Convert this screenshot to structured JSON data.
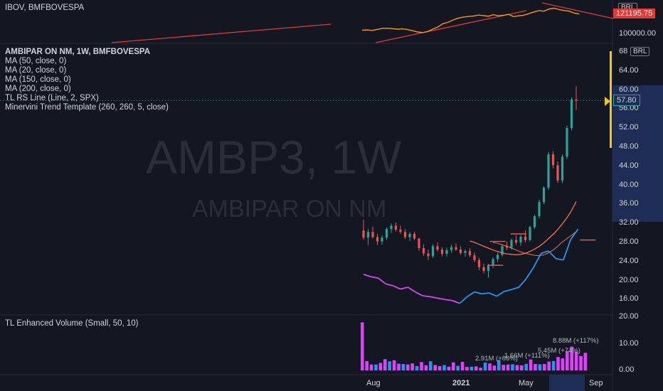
{
  "compare_pane": {
    "symbol_label": "IBOV, BMFBOVESPA",
    "currency_badge": "BRL",
    "last_value_label": "121195.75",
    "tick_label": "100000.00"
  },
  "main_pane": {
    "symbol_title": "AMBIPAR ON NM, 1W, BMFBOVESPA",
    "indicators": [
      "MA (50, close, 0)",
      "MA (20, close, 0)",
      "MA (150, close, 0)",
      "MA (200, close, 0)",
      "TL RS Line (Line, 2, SPX)",
      "Minervini Trend Template (260, 260, 5, close)"
    ],
    "watermark_ticker": "AMBP3, 1W",
    "watermark_name": "AMBIPAR ON NM",
    "currency_badge": "BRL",
    "price_label": "57.80",
    "top_tick": "68",
    "price_ticks": [
      "64.00",
      "60.00",
      "56.00",
      "52.00",
      "48.00",
      "44.00",
      "40.00",
      "36.00",
      "32.00",
      "28.00",
      "24.00",
      "20.00",
      "16.00"
    ]
  },
  "volume_pane": {
    "indicator_label": "TL Enhanced Volume (Small, 50, 10)",
    "ticks": [
      "20.00",
      "10.00",
      "0.00"
    ],
    "annotations": [
      "2.91M (+86%)",
      "1.66M (+111%)",
      "5.45M (+74%)",
      "8.88M (+117%)"
    ]
  },
  "x_axis": {
    "labels": [
      "Aug",
      "2021",
      "May",
      "Sep"
    ]
  },
  "colors": {
    "background": "#131722",
    "candle_up": "#26a69a",
    "candle_down": "#ef5350",
    "ibov_line": "#ff9800",
    "trend_line": "#e53935",
    "ma_line": "#ff7043",
    "rs_line_up": "#2196f3",
    "rs_line_down": "#e040fb",
    "volume_up": "#26a69a",
    "volume_high": "#e040fb",
    "volume_mid": "#2196f3",
    "highlight_yellow": "#f5c518",
    "axis_highlight": "#1e2d55"
  },
  "chart_data": [
    {
      "type": "line",
      "series": [
        {
          "name": "IBOV, BMFBOVESPA",
          "values": [
            100500,
            100800,
            100200,
            101500,
            102800,
            103000,
            102500,
            101800,
            102200,
            101300,
            99800,
            98200,
            97500,
            98800,
            101800,
            104500,
            108800,
            110500,
            113500,
            115800,
            117200,
            118000,
            118500,
            119800,
            119200,
            118400,
            120300,
            118900,
            119500,
            120800,
            117800,
            118900,
            119600,
            121600,
            123800,
            125500,
            124800,
            127500,
            128600,
            126800,
            125600,
            124800,
            122300,
            121196
          ]
        }
      ]
    },
    {
      "type": "candlestick",
      "ylim": [
        16,
        68
      ],
      "y_ticks": [
        64,
        60,
        56,
        52,
        48,
        44,
        40,
        36,
        32,
        28,
        24,
        20,
        16
      ],
      "last_price": 57.8,
      "candles": [
        [
          30.5,
          32.8,
          28.5,
          29.0
        ],
        [
          29.0,
          30.8,
          27.5,
          30.2
        ],
        [
          30.2,
          31.3,
          28.8,
          29.1
        ],
        [
          29.1,
          29.8,
          27.5,
          28.2
        ],
        [
          28.2,
          29.5,
          27.5,
          29.0
        ],
        [
          29.0,
          31.2,
          28.5,
          30.8
        ],
        [
          30.8,
          32.0,
          30.0,
          31.5
        ],
        [
          31.5,
          32.2,
          30.3,
          30.7
        ],
        [
          30.7,
          31.5,
          29.8,
          30.2
        ],
        [
          30.2,
          30.8,
          28.7,
          29.1
        ],
        [
          29.1,
          30.2,
          28.3,
          29.8
        ],
        [
          29.8,
          30.3,
          28.5,
          28.8
        ],
        [
          28.8,
          29.0,
          26.3,
          26.8
        ],
        [
          26.8,
          27.6,
          25.2,
          25.7
        ],
        [
          25.7,
          26.5,
          24.3,
          25.1
        ],
        [
          25.1,
          27.6,
          24.8,
          27.2
        ],
        [
          27.2,
          28.0,
          26.1,
          26.5
        ],
        [
          26.5,
          27.0,
          25.1,
          25.6
        ],
        [
          25.6,
          26.9,
          25.0,
          26.4
        ],
        [
          26.4,
          27.5,
          25.8,
          27.0
        ],
        [
          27.0,
          27.8,
          26.2,
          26.5
        ],
        [
          26.5,
          27.2,
          25.4,
          25.8
        ],
        [
          25.8,
          26.6,
          25.0,
          26.2
        ],
        [
          26.2,
          26.8,
          24.9,
          25.3
        ],
        [
          25.3,
          25.9,
          23.8,
          24.3
        ],
        [
          24.3,
          24.8,
          22.2,
          22.8
        ],
        [
          22.8,
          23.6,
          21.5,
          22.0
        ],
        [
          22.0,
          23.5,
          20.6,
          23.2
        ],
        [
          23.2,
          24.9,
          22.6,
          24.5
        ],
        [
          24.5,
          25.8,
          23.9,
          25.4
        ],
        [
          25.4,
          27.5,
          25.0,
          27.2
        ],
        [
          27.2,
          28.2,
          26.4,
          26.9
        ],
        [
          26.9,
          28.8,
          26.5,
          28.5
        ],
        [
          28.5,
          29.5,
          27.5,
          28.0
        ],
        [
          28.0,
          29.6,
          27.3,
          29.2
        ],
        [
          29.2,
          30.5,
          28.0,
          28.5
        ],
        [
          28.5,
          31.5,
          28.2,
          31.2
        ],
        [
          31.2,
          33.8,
          30.8,
          33.5
        ],
        [
          33.5,
          37.0,
          33.0,
          36.5
        ],
        [
          36.5,
          39.8,
          36.0,
          39.5
        ],
        [
          39.5,
          47.0,
          39.0,
          46.5
        ],
        [
          46.5,
          47.2,
          43.5,
          44.2
        ],
        [
          44.2,
          45.0,
          40.5,
          41.0
        ],
        [
          41.0,
          46.5,
          40.5,
          46.0
        ],
        [
          46.0,
          52.5,
          45.5,
          52.0
        ],
        [
          52.0,
          58.5,
          51.5,
          58.0
        ],
        [
          58.0,
          60.8,
          55.8,
          57.8
        ]
      ],
      "series": [
        {
          "name": "MA (50, close, 0)",
          "values": [
            28.3,
            28.0,
            27.6,
            27.2,
            26.8,
            26.4,
            26.1,
            25.8,
            25.6,
            25.5,
            25.4,
            25.5,
            25.7,
            26.1,
            26.6,
            27.2,
            27.9,
            28.8,
            29.7,
            30.7,
            31.9,
            33.2,
            34.7,
            36.6
          ]
        },
        {
          "name": "MA (20, close, 0)",
          "values": [
            28.0,
            27.8,
            27.5,
            27.2,
            26.8,
            26.4,
            26.0,
            25.7,
            25.5,
            25.3,
            25.2,
            25.4,
            25.8,
            26.4,
            27.2,
            28.1,
            28.8,
            29.5,
            30.3
          ]
        },
        {
          "name": "TL RS Line (Line, 2, SPX)",
          "values": [
            21.3,
            20.8,
            20.5,
            19.3,
            18.9,
            18.2,
            18.6,
            17.6,
            16.8,
            16.6,
            16.3,
            16.0,
            15.8,
            15.2,
            16.6,
            17.6,
            17.2,
            17.4,
            16.7,
            17.7,
            18.1,
            18.6,
            20.4,
            22.8,
            25.7,
            26.2,
            24.6,
            24.3,
            28.6,
            30.8
          ]
        }
      ]
    },
    {
      "type": "bar",
      "ylim": [
        0,
        20
      ],
      "y_ticks": [
        20,
        10,
        0
      ],
      "values": [
        18.0,
        3.5,
        2.2,
        2.2,
        2.8,
        4.2,
        3.4,
        3.8,
        2.5,
        2.4,
        2.2,
        2.6,
        1.6,
        3.1,
        1.9,
        3.4,
        2.0,
        1.6,
        2.0,
        1.4,
        3.0,
        1.7,
        3.2,
        1.3,
        1.4,
        1.5,
        1.0,
        2.9,
        2.6,
        1.8,
        3.9,
        2.1,
        2.2,
        2.3,
        2.0,
        1.9,
        2.4,
        4.1,
        2.4,
        2.3,
        2.4,
        3.3,
        3.5,
        5.0,
        4.5,
        7.2,
        8.9,
        7.0,
        5.4,
        6.6
      ]
    }
  ]
}
